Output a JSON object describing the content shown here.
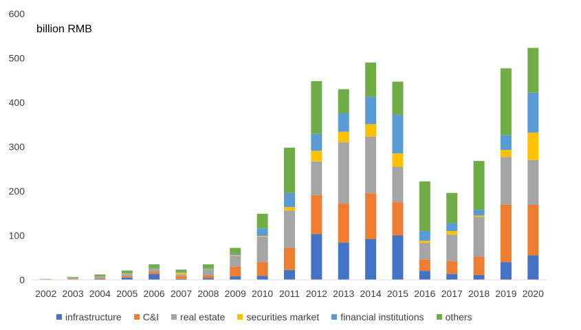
{
  "chart_data": {
    "type": "bar",
    "stacked": true,
    "unit_label": "billion RMB",
    "categories": [
      "2002",
      "2003",
      "2004",
      "2005",
      "2006",
      "2007",
      "2008",
      "2009",
      "2010",
      "2011",
      "2012",
      "2013",
      "2014",
      "2015",
      "2016",
      "2017",
      "2018",
      "2019",
      "2020"
    ],
    "ylim": [
      0,
      600
    ],
    "yticks": [
      0,
      100,
      200,
      300,
      400,
      500,
      600
    ],
    "grid": false,
    "legend_position": "bottom",
    "series": [
      {
        "name": "infrastructure",
        "color": "#4472C4",
        "values": [
          0.5,
          1,
          2,
          5,
          13,
          2,
          4,
          8,
          9,
          22,
          103,
          84,
          92,
          100,
          20,
          13,
          11,
          40,
          55
        ]
      },
      {
        "name": "C&I",
        "color": "#ED7D31",
        "values": [
          0.5,
          1,
          2,
          3,
          5,
          6,
          6,
          22,
          31,
          50,
          88,
          88,
          103,
          75,
          26,
          29,
          41,
          130,
          114
        ]
      },
      {
        "name": "real estate",
        "color": "#A5A5A5",
        "values": [
          0.5,
          2,
          3,
          5,
          6,
          4,
          13,
          24,
          57,
          84,
          76,
          138,
          128,
          80,
          37,
          60,
          90,
          107,
          101
        ]
      },
      {
        "name": "securities market",
        "color": "#FFC000",
        "values": [
          0,
          0.5,
          0.5,
          1,
          1,
          4,
          1,
          2,
          2,
          8,
          24,
          24,
          28,
          30,
          5,
          8,
          3,
          16,
          62
        ]
      },
      {
        "name": "financial institutions",
        "color": "#5B9BD5",
        "values": [
          0,
          0.5,
          1,
          1,
          2,
          2,
          2,
          3,
          17,
          32,
          38,
          42,
          62,
          87,
          22,
          18,
          13,
          34,
          90
        ]
      },
      {
        "name": "others",
        "color": "#70AD47",
        "values": [
          0.5,
          1.5,
          3.5,
          6,
          8,
          5,
          9,
          13,
          33,
          102,
          119,
          54,
          77,
          75,
          112,
          68,
          110,
          150,
          101
        ]
      }
    ]
  }
}
